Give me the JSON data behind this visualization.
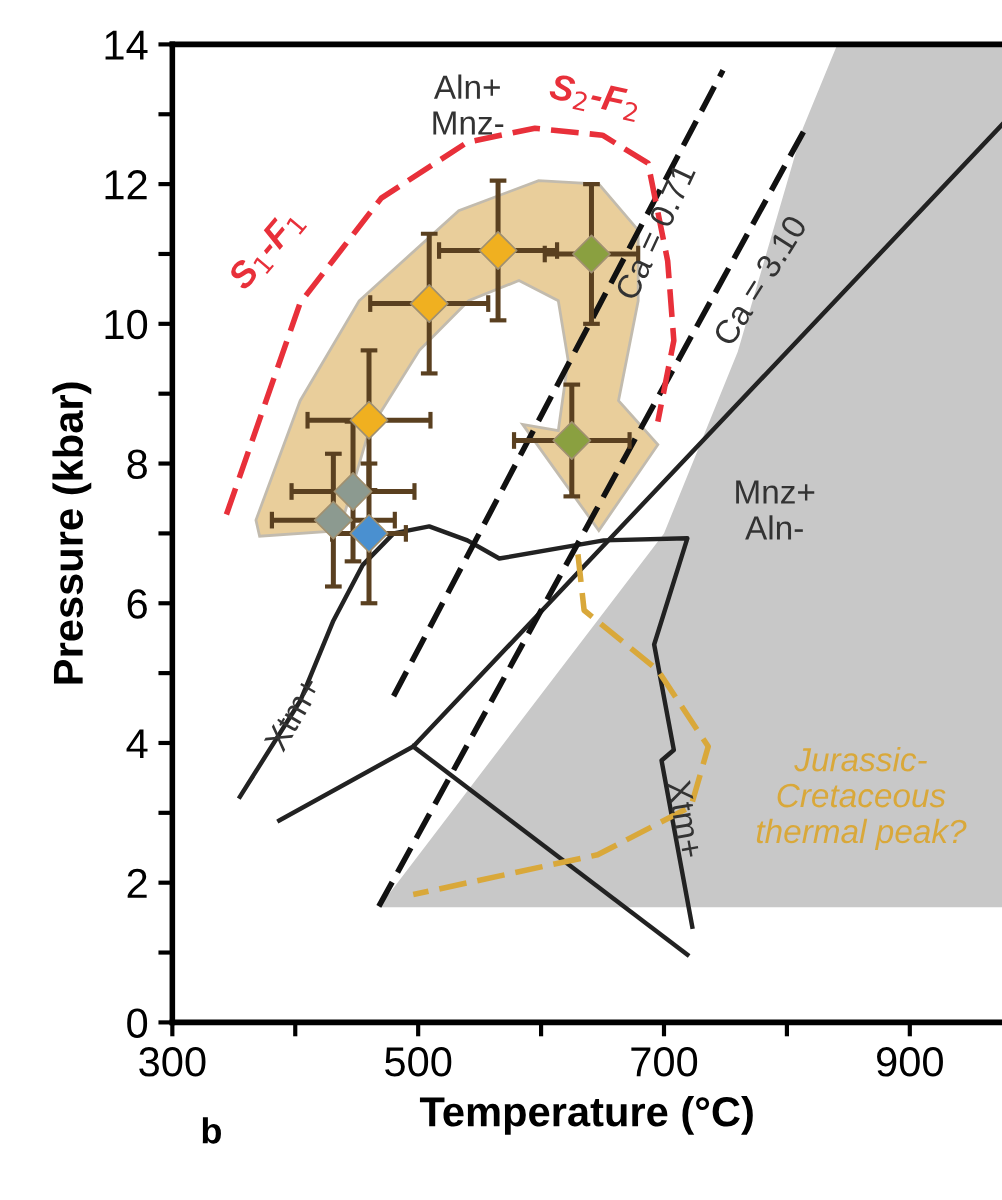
{
  "chart_data": {
    "type": "scatter",
    "xlabel": "Temperature (°C)",
    "ylabel": "Pressure (kbar)",
    "xlim": [
      300,
      975
    ],
    "ylim": [
      0,
      14
    ],
    "xticks": [
      300,
      {
        "value": 400,
        "label": null
      },
      500,
      {
        "value": 600,
        "label": null
      },
      700,
      {
        "value": 800,
        "label": null
      },
      900
    ],
    "yticks": [
      0,
      {
        "value": 1,
        "label": null
      },
      2,
      {
        "value": 3,
        "label": null
      },
      4,
      {
        "value": 5,
        "label": null
      },
      6,
      {
        "value": 7,
        "label": null
      },
      8,
      {
        "value": 9,
        "label": null
      },
      10,
      {
        "value": 11,
        "label": null
      },
      12,
      {
        "value": 13,
        "label": null
      },
      14
    ],
    "series": [
      {
        "type": "line",
        "color": "#222222",
        "line_style": "solid",
        "x": [
          355,
          404,
          431,
          455,
          480,
          509,
          540,
          566,
          651,
          719,
          692,
          708,
          698,
          723
        ],
        "values": [
          3.23,
          4.6,
          5.75,
          6.55,
          7.0,
          7.1,
          6.9,
          6.64,
          6.9,
          6.93,
          5.41,
          3.9,
          3.75,
          1.37
        ]
      },
      {
        "type": "line",
        "color": "#222222",
        "line_style": "solid",
        "x": [
          387,
          496,
          975
        ],
        "values": [
          2.89,
          3.95,
          12.85
        ]
      },
      {
        "type": "line",
        "color": "#222222",
        "line_style": "solid",
        "x": [
          496,
          719
        ],
        "values": [
          3.95,
          0.97
        ]
      },
      {
        "type": "line",
        "color": "#111111",
        "line_style": "dashed",
        "x": [
          480,
          748
        ],
        "values": [
          4.67,
          13.63
        ]
      },
      {
        "type": "line",
        "color": "#111111",
        "line_style": "dashed",
        "x": [
          468,
          816
        ],
        "values": [
          1.66,
          12.83
        ]
      },
      {
        "type": "line",
        "color": "#e8303a",
        "line_style": "dashed",
        "x": [
          344,
          404,
          470,
          540,
          595,
          650,
          687,
          703,
          708,
          695
        ],
        "values": [
          7.27,
          10.3,
          11.8,
          12.6,
          12.8,
          12.7,
          12.3,
          10.9,
          9.76,
          8.6
        ]
      },
      {
        "type": "line",
        "color": "#d9a83a",
        "line_style": "dashed",
        "x": [
          630,
          635,
          695,
          736,
          722,
          646,
          496
        ],
        "values": [
          6.7,
          5.9,
          5.04,
          3.95,
          3.09,
          2.4,
          1.83
        ]
      },
      {
        "marker": "diamond",
        "x": [
          565,
          641,
          509,
          625,
          460,
          447,
          431,
          460
        ],
        "values": [
          11.05,
          11.0,
          10.29,
          8.33,
          8.62,
          7.6,
          7.19,
          7.0
        ],
        "colors": [
          "#f0b020",
          "#8aa040",
          "#f0b020",
          "#8aa040",
          "#f0b020",
          "#8c9a90",
          "#8c9a90",
          "#4a90d0"
        ],
        "errors": [
          1.0,
          1.0,
          1.0,
          0.8,
          1.0,
          1.0,
          0.95,
          1.0
        ],
        "xerrors": [
          48,
          38,
          48,
          47,
          50,
          50,
          50,
          30
        ]
      }
    ],
    "annotations": [
      "Aln+\nMnz-",
      "Mnz+\nAln-",
      {
        "text": "Ca = 0.71",
        "x": 695,
        "y": 11.3
      },
      "Ca = 3.10",
      "S$_{1}$-F$_{1}$",
      "S$_{2}$-F$_{2}$",
      {
        "text": "Xtm+",
        "x": 400,
        "y": 4.4
      },
      {
        "text": "Xtm+",
        "x": 715,
        "y": 2.9
      },
      "Jurassic-\nCretaceous\nthermal peak?",
      "b"
    ]
  }
}
